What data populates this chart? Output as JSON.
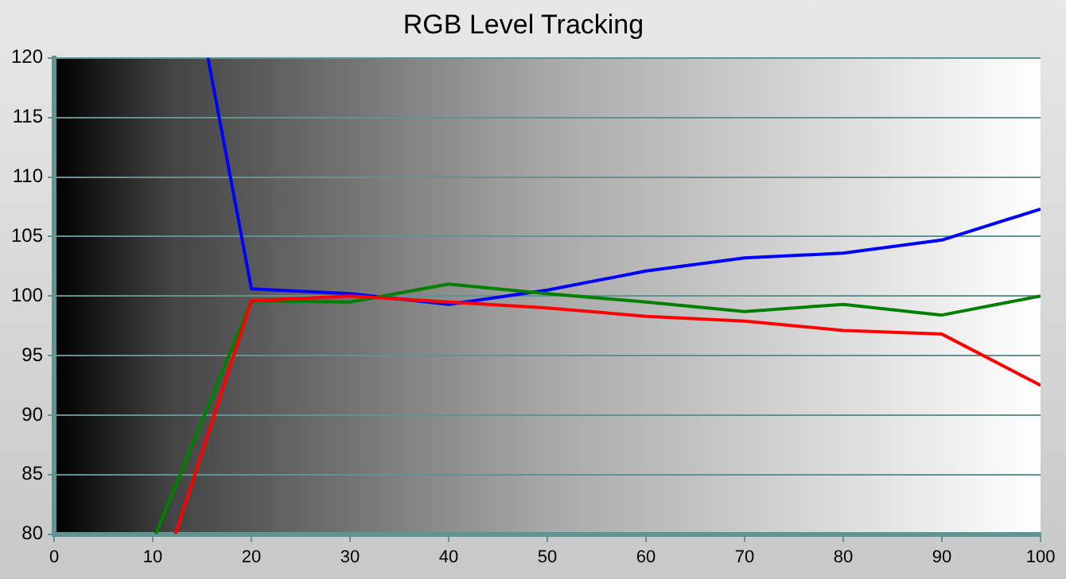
{
  "chart_data": {
    "type": "line",
    "title": "RGB Level Tracking",
    "xlim": [
      0,
      100
    ],
    "xticks": [
      0,
      10,
      20,
      30,
      40,
      50,
      60,
      70,
      80,
      90,
      100
    ],
    "ylim": [
      80,
      120
    ],
    "yticks": [
      80,
      85,
      90,
      95,
      100,
      105,
      110,
      115,
      120
    ],
    "grid": "y",
    "legend": false,
    "marker": "none",
    "line_style": "solid",
    "series": [
      {
        "color": "#ff0000",
        "x": [
          12.3,
          20,
          30,
          40,
          50,
          60,
          70,
          80,
          90,
          100
        ],
        "values": [
          80,
          99.6,
          100.0,
          99.5,
          99.0,
          98.3,
          97.9,
          97.1,
          96.8,
          92.5
        ]
      },
      {
        "color": "#008000",
        "x": [
          10.3,
          20,
          30,
          40,
          50,
          60,
          70,
          80,
          90,
          100
        ],
        "values": [
          80,
          99.6,
          99.5,
          101.0,
          100.2,
          99.5,
          98.7,
          99.3,
          98.4,
          100.0
        ]
      },
      {
        "color": "#0000ff",
        "x": [
          15.6,
          20,
          30,
          40,
          50,
          60,
          70,
          80,
          90,
          100
        ],
        "values": [
          120,
          100.6,
          100.2,
          99.3,
          100.5,
          102.1,
          103.2,
          103.6,
          104.7,
          107.3
        ]
      }
    ]
  }
}
